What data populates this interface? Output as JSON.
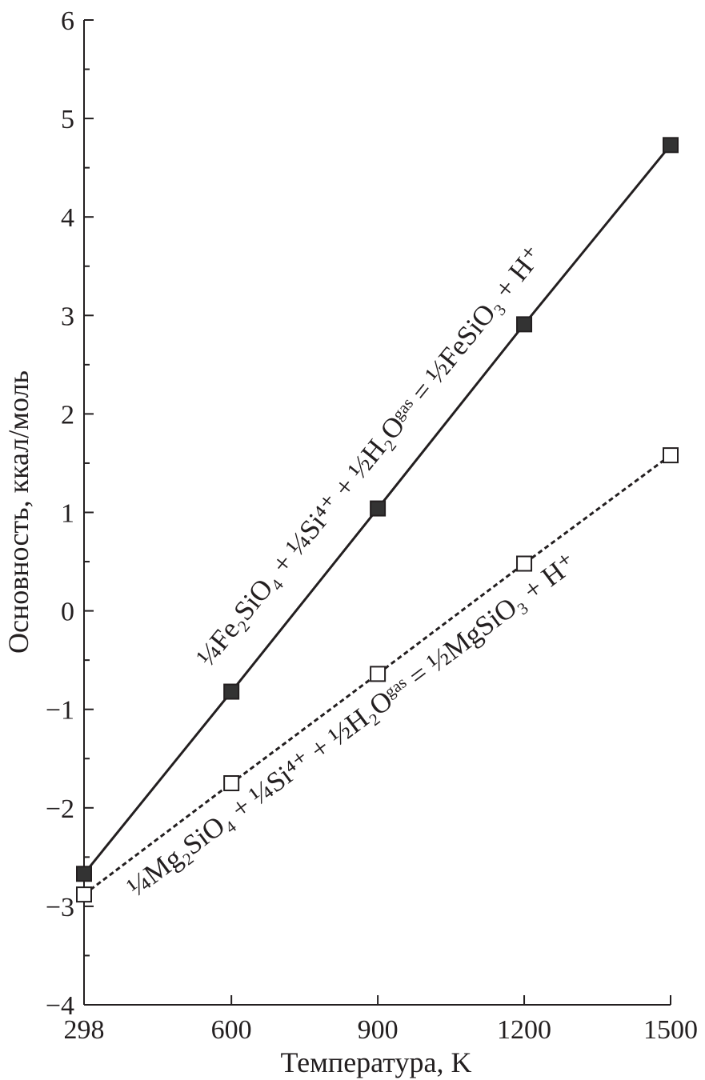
{
  "chart_data": {
    "type": "line",
    "title": "",
    "xlabel": "Температура, K",
    "ylabel": "Основность, ккал/моль",
    "x": [
      298,
      600,
      900,
      1200,
      1500
    ],
    "xticks": [
      "298",
      "600",
      "900",
      "1200",
      "1500"
    ],
    "yticks": [
      "−4",
      "−3",
      "−2",
      "−1",
      "0",
      "1",
      "2",
      "3",
      "4",
      "5",
      "6"
    ],
    "xlim": [
      298,
      1500
    ],
    "ylim": [
      -4,
      6
    ],
    "grid": false,
    "series": [
      {
        "name": "Fe",
        "marker": "filled-square",
        "line": "solid",
        "values": [
          -2.67,
          -0.82,
          1.04,
          2.91,
          4.73
        ],
        "label": "¼Fe₂SiO₄ + ¼Si⁴⁺ + ½H₂Oᵍᵃˢ = ½FeSiO₃ + H⁺"
      },
      {
        "name": "Mg",
        "marker": "open-square",
        "line": "dashed",
        "values": [
          -2.88,
          -1.75,
          -0.64,
          0.48,
          1.58
        ],
        "label": "¼Mg₂SiO₄ + ¼Si⁴⁺ + ½H₂Oᵍᵃˢ = ½MgSiO₃ + H⁺"
      }
    ],
    "colors": {
      "ink": "#231f20",
      "fill": "#333333"
    }
  }
}
